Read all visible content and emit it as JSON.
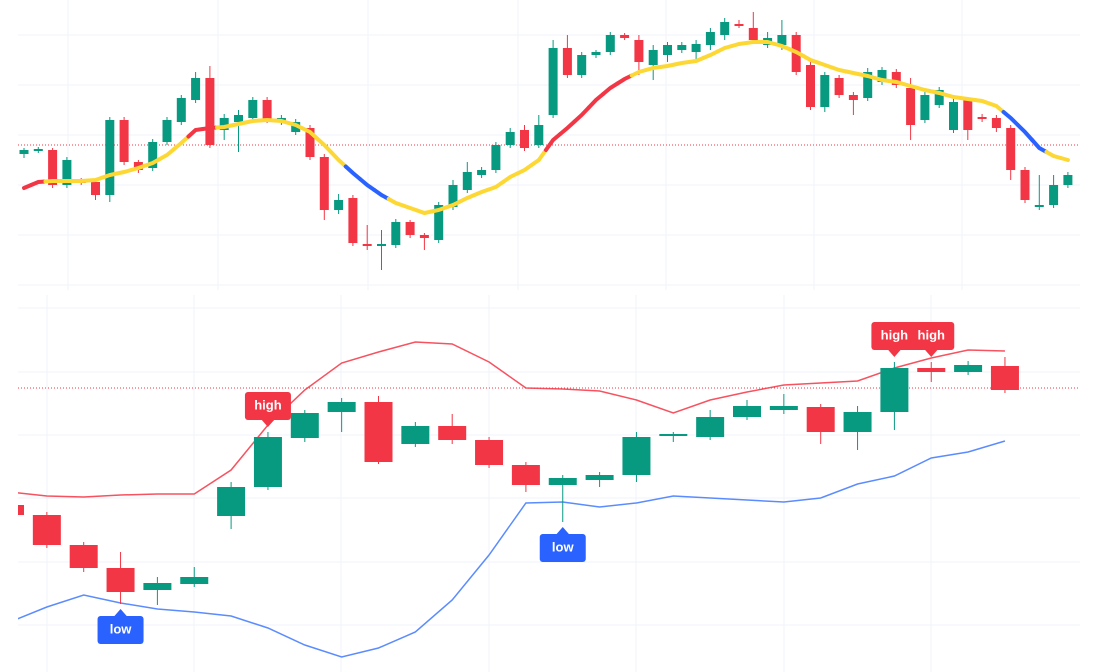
{
  "chart_data": [
    {
      "type": "candlestick",
      "up_color": "#089981",
      "down_color": "#f23645",
      "ylim": [
        0,
        290
      ],
      "open": [
        136,
        139,
        140,
        105,
        110,
        108,
        95,
        170,
        128,
        122,
        148,
        168,
        190,
        212,
        160,
        168,
        172,
        190,
        168,
        158,
        162,
        133,
        80,
        92,
        46,
        45,
        45,
        68,
        55,
        50,
        83,
        100,
        115,
        120,
        145,
        160,
        145,
        175,
        242,
        215,
        235,
        238,
        255,
        250,
        225,
        235,
        240,
        238,
        245,
        255,
        266,
        262,
        245,
        245,
        255,
        225,
        183,
        212,
        195,
        192,
        208,
        218,
        202,
        170,
        185,
        160,
        190,
        173,
        172,
        162,
        120,
        84,
        85,
        105
      ],
      "high": [
        142,
        143,
        142,
        133,
        112,
        110,
        173,
        173,
        130,
        151,
        173,
        195,
        218,
        224,
        176,
        180,
        193,
        193,
        175,
        171,
        165,
        136,
        96,
        95,
        65,
        60,
        71,
        70,
        57,
        88,
        110,
        128,
        123,
        148,
        162,
        165,
        175,
        250,
        255,
        238,
        240,
        258,
        257,
        255,
        245,
        248,
        248,
        250,
        262,
        272,
        270,
        278,
        258,
        270,
        258,
        228,
        218,
        215,
        198,
        222,
        223,
        221,
        212,
        198,
        203,
        191,
        193,
        176,
        175,
        165,
        123,
        115,
        115,
        118
      ],
      "low": [
        132,
        137,
        102,
        102,
        105,
        90,
        88,
        125,
        117,
        119,
        145,
        165,
        187,
        142,
        150,
        138,
        168,
        167,
        165,
        155,
        130,
        70,
        76,
        44,
        40,
        20,
        42,
        52,
        40,
        47,
        80,
        97,
        112,
        117,
        142,
        139,
        142,
        172,
        212,
        212,
        232,
        235,
        250,
        215,
        210,
        228,
        237,
        230,
        240,
        250,
        262,
        246,
        242,
        240,
        215,
        180,
        178,
        192,
        175,
        189,
        205,
        202,
        150,
        167,
        182,
        157,
        150,
        168,
        158,
        110,
        87,
        80,
        82,
        102
      ],
      "close": [
        140,
        141,
        105,
        130,
        107,
        95,
        170,
        128,
        120,
        148,
        170,
        192,
        212,
        145,
        172,
        175,
        190,
        170,
        172,
        168,
        133,
        80,
        90,
        47,
        45,
        46,
        68,
        55,
        52,
        85,
        105,
        118,
        120,
        145,
        158,
        142,
        165,
        242,
        215,
        235,
        238,
        255,
        252,
        228,
        240,
        245,
        245,
        246,
        258,
        268,
        265,
        250,
        252,
        255,
        218,
        183,
        215,
        195,
        190,
        218,
        220,
        205,
        165,
        195,
        200,
        188,
        160,
        172,
        162,
        120,
        90,
        85,
        105,
        115
      ],
      "ma": {
        "values": [
          102,
          108,
          109,
          109,
          109,
          110,
          115,
          118,
          122,
          127,
          135,
          147,
          160,
          162,
          163,
          166,
          169,
          170,
          169,
          165,
          158,
          145,
          130,
          117,
          105,
          95,
          87,
          82,
          77,
          80,
          85,
          92,
          98,
          103,
          113,
          120,
          130,
          150,
          162,
          175,
          190,
          202,
          211,
          218,
          222,
          224,
          227,
          229,
          235,
          242,
          246,
          248,
          248,
          244,
          238,
          230,
          225,
          220,
          217,
          214,
          210,
          208,
          204,
          200,
          197,
          193,
          191,
          189,
          184,
          172,
          158,
          142,
          134,
          130
        ],
        "colors": [
          "#f23645",
          "#f23645",
          "#fdd835",
          "#fdd835",
          "#fdd835",
          "#fdd835",
          "#fdd835",
          "#fdd835",
          "#fdd835",
          "#fdd835",
          "#fdd835",
          "#fdd835",
          "#f23645",
          "#f23645",
          "#fdd835",
          "#fdd835",
          "#fdd835",
          "#fdd835",
          "#fdd835",
          "#fdd835",
          "#fdd835",
          "#fdd835",
          "#fdd835",
          "#2962ff",
          "#2962ff",
          "#2962ff",
          "#fdd835",
          "#fdd835",
          "#fdd835",
          "#fdd835",
          "#fdd835",
          "#fdd835",
          "#fdd835",
          "#fdd835",
          "#fdd835",
          "#fdd835",
          "#fdd835",
          "#f23645",
          "#f23645",
          "#f23645",
          "#f23645",
          "#f23645",
          "#f23645",
          "#fdd835",
          "#fdd835",
          "#fdd835",
          "#fdd835",
          "#fdd835",
          "#fdd835",
          "#fdd835",
          "#fdd835",
          "#fdd835",
          "#fdd835",
          "#fdd835",
          "#fdd835",
          "#fdd835",
          "#fdd835",
          "#fdd835",
          "#fdd835",
          "#fdd835",
          "#fdd835",
          "#fdd835",
          "#fdd835",
          "#fdd835",
          "#fdd835",
          "#fdd835",
          "#fdd835",
          "#fdd835",
          "#fdd835",
          "#2962ff",
          "#2962ff",
          "#2962ff",
          "#fdd835",
          "#fdd835"
        ]
      },
      "price_line": {
        "value": 145,
        "color": "#f23645"
      }
    },
    {
      "type": "candlestick",
      "up_color": "#089981",
      "down_color": "#f23645",
      "ylim": [
        0,
        377
      ],
      "open": [
        167,
        157,
        127,
        104,
        82,
        88,
        156,
        185,
        234,
        260,
        270,
        228,
        246,
        232,
        207,
        187,
        192,
        197,
        236,
        235,
        255,
        262,
        265,
        240,
        260,
        304,
        300,
        306
      ],
      "high": [
        170,
        160,
        130,
        120,
        95,
        105,
        190,
        240,
        262,
        274,
        276,
        250,
        258,
        235,
        210,
        197,
        200,
        240,
        240,
        262,
        272,
        278,
        268,
        266,
        310,
        310,
        311,
        315
      ],
      "low": [
        154,
        124,
        100,
        68,
        67,
        85,
        143,
        182,
        230,
        240,
        208,
        225,
        228,
        204,
        180,
        150,
        185,
        190,
        230,
        232,
        252,
        258,
        228,
        222,
        242,
        290,
        297,
        279
      ],
      "close": [
        157,
        127,
        104,
        80,
        89,
        95,
        185,
        235,
        259,
        270,
        210,
        246,
        232,
        207,
        187,
        194,
        197,
        235,
        238,
        255,
        266,
        266,
        240,
        260,
        304,
        300,
        307,
        282
      ],
      "upper_band": {
        "color": "#f7525f",
        "values": [
          180,
          176,
          175,
          177,
          178,
          178,
          202,
          247,
          282,
          309,
          320,
          330,
          328,
          310,
          284,
          283,
          281,
          272,
          259,
          272,
          280,
          287,
          289,
          291,
          304,
          314,
          322,
          321
        ]
      },
      "lower_band": {
        "color": "#5b8cff",
        "values": [
          50,
          65,
          77,
          69,
          63,
          60,
          56,
          44,
          27,
          15,
          24,
          40,
          72,
          117,
          169,
          170,
          165,
          169,
          176,
          174,
          172,
          170,
          174,
          188,
          196,
          214,
          220,
          231
        ]
      },
      "markers": [
        null,
        null,
        null,
        "low",
        null,
        null,
        null,
        "high",
        null,
        null,
        null,
        null,
        null,
        null,
        null,
        "low",
        null,
        null,
        null,
        null,
        null,
        null,
        null,
        null,
        "high",
        "high",
        null,
        null
      ],
      "marker_colors": {
        "high": "#f23645",
        "low": "#2962ff"
      },
      "price_line": {
        "value": 284,
        "color": "#f23645"
      }
    }
  ]
}
